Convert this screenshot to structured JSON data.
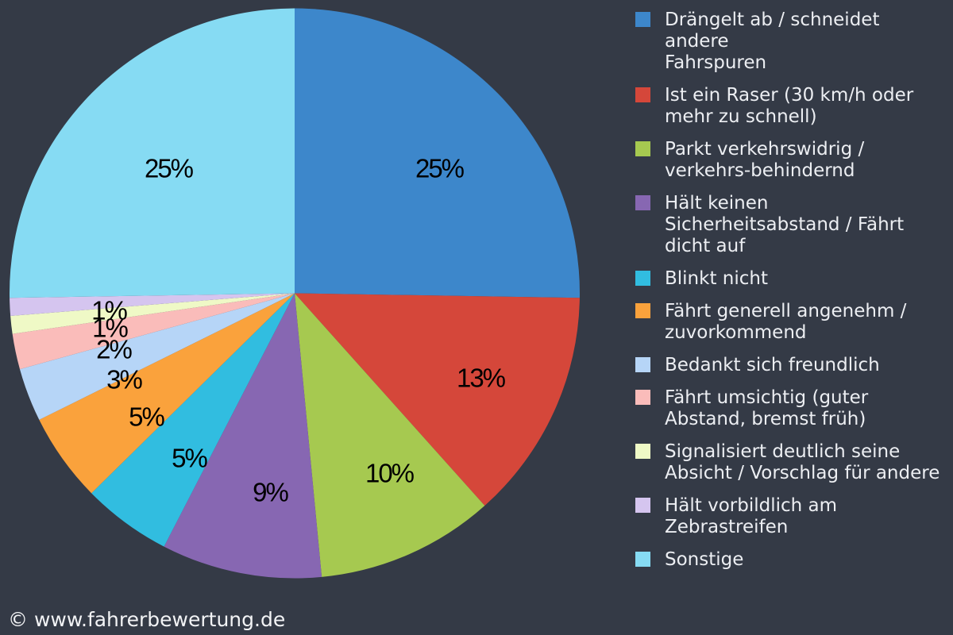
{
  "chart_data": {
    "type": "pie",
    "legend_position": "right",
    "labels_format": "percent",
    "background_color": "#343a46",
    "slices": [
      {
        "label": "Drängelt ab / schneidet andere Fahrspuren",
        "legend_text": "Drängelt ab / schneidet andere\nFahrspuren",
        "value": 25,
        "percent_label": "25%",
        "color": "#3d87cb"
      },
      {
        "label": "Ist ein Raser (30 km/h oder mehr zu schnell)",
        "legend_text": "Ist ein Raser (30 km/h oder\nmehr zu schnell)",
        "value": 13,
        "percent_label": "13%",
        "color": "#d5473a"
      },
      {
        "label": "Parkt verkehrswidrig / verkehrs-behindernd",
        "legend_text": "Parkt verkehrswidrig /\nverkehrs-behindernd",
        "value": 10,
        "percent_label": "10%",
        "color": "#a6c950"
      },
      {
        "label": "Hält keinen Sicherheitsabstand / Fährt dicht auf",
        "legend_text": "Hält keinen\nSicherheitsabstand / Fährt\ndicht auf",
        "value": 9,
        "percent_label": "9%",
        "color": "#8767b2"
      },
      {
        "label": "Blinkt nicht",
        "legend_text": "Blinkt nicht",
        "value": 5,
        "percent_label": "5%",
        "color": "#31bde0"
      },
      {
        "label": "Fährt generell angenehm / zuvorkommend",
        "legend_text": "Fährt generell angenehm /\nzuvorkommend",
        "value": 5,
        "percent_label": "5%",
        "color": "#faa23c"
      },
      {
        "label": "Bedankt sich freundlich",
        "legend_text": "Bedankt sich freundlich",
        "value": 3,
        "percent_label": "3%",
        "color": "#b6d5f7"
      },
      {
        "label": "Fährt umsichtig (guter Abstand, bremst früh)",
        "legend_text": "Fährt umsichtig (guter\nAbstand, bremst früh)",
        "value": 2,
        "percent_label": "2%",
        "color": "#fabcba"
      },
      {
        "label": "Signalisiert deutlich seine Absicht / Vorschlag für andere",
        "legend_text": "Signalisiert deutlich seine\nAbsicht / Vorschlag für andere",
        "value": 1,
        "percent_label": "1%",
        "color": "#eff9c6"
      },
      {
        "label": "Hält vorbildlich am Zebrastreifen",
        "legend_text": "Hält vorbildlich am\nZebrastreifen",
        "value": 1,
        "percent_label": "1%",
        "color": "#d5c5ef"
      },
      {
        "label": "Sonstige",
        "legend_text": "Sonstige",
        "value": 25,
        "percent_label": "25%",
        "color": "#86dbf3"
      }
    ]
  },
  "footer": {
    "copyright": "© www.fahrerbewertung.de"
  },
  "colors": {
    "background": "#343a46",
    "legend_text": "#eceef2",
    "pie_label_text": "#000000",
    "footer_text": "#f2f3f5"
  }
}
